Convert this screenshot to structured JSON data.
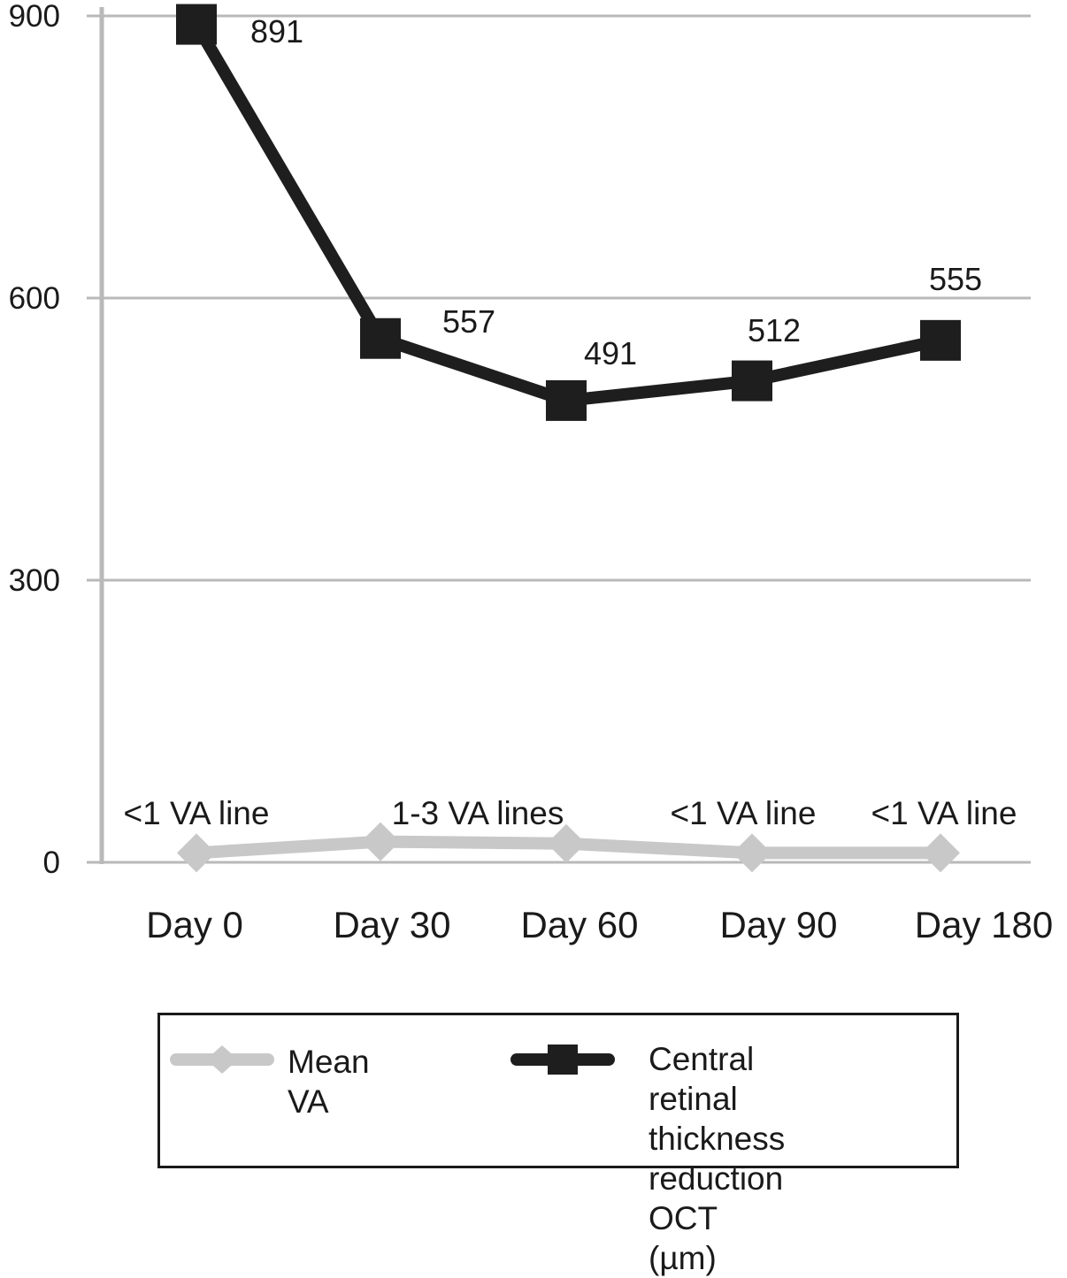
{
  "chart_data": {
    "type": "line",
    "categories": [
      "Day 0",
      "Day 30",
      "Day 60",
      "Day 90",
      "Day 180"
    ],
    "ylim": [
      0,
      900
    ],
    "yticks": [
      "0",
      "300",
      "600",
      "900"
    ],
    "grid": true,
    "legend_position": "bottom",
    "series": [
      {
        "name": "Mean VA",
        "color": "#c8c8c8",
        "marker": "diamond",
        "values": [
          10,
          22,
          20,
          10,
          10
        ],
        "point_labels": [
          "<1 VA line",
          "1-3 VA lines",
          "",
          "<1 VA line",
          "<1 VA line"
        ]
      },
      {
        "name": "Central retinal\nthickness reduction\nOCT (µm)",
        "color": "#1e1e1e",
        "marker": "square",
        "values": [
          891,
          557,
          491,
          512,
          555
        ],
        "point_labels": [
          "891",
          "557",
          "491",
          "512",
          "555"
        ]
      }
    ]
  }
}
